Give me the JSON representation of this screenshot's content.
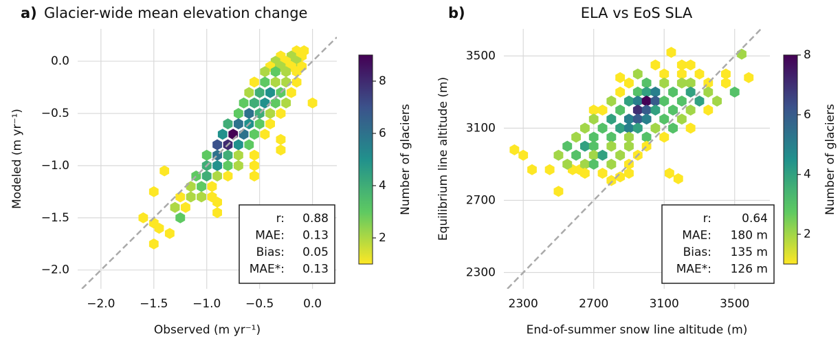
{
  "chart_data": [
    {
      "type": "hexbin",
      "panel_label": "a)",
      "title": "Glacier-wide mean elevation change",
      "xlabel": "Observed (m yr⁻¹)",
      "ylabel": "Modeled (m yr⁻¹)",
      "xlim": [
        -2.22,
        0.23
      ],
      "ylim": [
        -2.18,
        0.31
      ],
      "xticks": [
        {
          "value": -2,
          "label": "−2.0"
        },
        {
          "value": -1.5,
          "label": "−1.5"
        },
        {
          "value": -1,
          "label": "−1.0"
        },
        {
          "value": -0.5,
          "label": "−0.5"
        },
        {
          "value": 0,
          "label": "0.0"
        }
      ],
      "yticks": [
        {
          "value": -2,
          "label": "−2.0"
        },
        {
          "value": -1.5,
          "label": "−1.5"
        },
        {
          "value": -1,
          "label": "−1.0"
        },
        {
          "value": -0.5,
          "label": "−0.5"
        },
        {
          "value": 0,
          "label": "0.0"
        }
      ],
      "grid": true,
      "one_to_one": true,
      "cmap": "viridis_r",
      "colorbar": {
        "label": "Number of glaciers",
        "lim": [
          1,
          9
        ],
        "ticks": [
          2,
          4,
          6,
          8
        ]
      },
      "x": [
        -0.15,
        -0.08,
        -0.3,
        -0.2,
        -0.1,
        -0.35,
        -0.25,
        -0.15,
        -0.4,
        -0.3,
        -0.2,
        -0.1,
        -0.45,
        -0.35,
        -0.25,
        -0.15,
        -0.55,
        -0.45,
        -0.35,
        -0.25,
        -0.15,
        -0.6,
        -0.5,
        -0.4,
        -0.3,
        -0.2,
        -0.65,
        -0.55,
        -0.45,
        -0.35,
        -0.25,
        -0.7,
        -0.6,
        -0.5,
        -0.4,
        -0.3,
        -0.8,
        -0.7,
        -0.6,
        -0.5,
        -0.4,
        -0.85,
        -0.75,
        -0.65,
        -0.55,
        -0.45,
        -0.9,
        -0.8,
        -0.7,
        -0.6,
        -0.3,
        -1.0,
        -0.9,
        -0.8,
        -0.7,
        -0.55,
        -1.0,
        -0.9,
        -0.8,
        -0.7,
        -0.55,
        -1.1,
        -1.0,
        -0.9,
        -0.8,
        -0.55,
        -1.4,
        -1.15,
        -1.05,
        -0.95,
        -1.25,
        -1.15,
        -1.05,
        -0.95,
        -1.5,
        -1.3,
        -1.2,
        -0.9,
        -1.25,
        -0.9,
        -1.6,
        -1.5,
        -1.45,
        -1.35,
        -1.5,
        0.0,
        -0.3
      ],
      "y": [
        0.1,
        0.1,
        0.05,
        0.05,
        0.05,
        0.0,
        0.0,
        0.0,
        -0.05,
        -0.05,
        -0.05,
        -0.05,
        -0.1,
        -0.1,
        -0.1,
        -0.1,
        -0.2,
        -0.2,
        -0.2,
        -0.2,
        -0.2,
        -0.3,
        -0.3,
        -0.3,
        -0.3,
        -0.3,
        -0.4,
        -0.4,
        -0.4,
        -0.4,
        -0.4,
        -0.5,
        -0.5,
        -0.5,
        -0.5,
        -0.5,
        -0.6,
        -0.6,
        -0.6,
        -0.6,
        -0.6,
        -0.7,
        -0.7,
        -0.7,
        -0.7,
        -0.7,
        -0.8,
        -0.8,
        -0.8,
        -0.8,
        -0.75,
        -0.9,
        -0.9,
        -0.9,
        -0.9,
        -0.9,
        -1.0,
        -1.0,
        -1.0,
        -1.0,
        -1.0,
        -1.1,
        -1.1,
        -1.1,
        -1.1,
        -1.1,
        -1.05,
        -1.2,
        -1.2,
        -1.2,
        -1.3,
        -1.3,
        -1.3,
        -1.3,
        -1.25,
        -1.4,
        -1.4,
        -1.35,
        -1.5,
        -1.45,
        -1.5,
        -1.55,
        -1.6,
        -1.65,
        -1.75,
        -0.4,
        -0.85
      ],
      "values": [
        1,
        1,
        1,
        2,
        1,
        2,
        1,
        2,
        1,
        2,
        1,
        1,
        2,
        3,
        2,
        1,
        1,
        3,
        2,
        2,
        1,
        2,
        4,
        5,
        3,
        1,
        3,
        4,
        5,
        3,
        2,
        3,
        6,
        4,
        2,
        1,
        4,
        6,
        5,
        3,
        1,
        5,
        9,
        6,
        3,
        1,
        7,
        8,
        5,
        3,
        1,
        3,
        6,
        4,
        2,
        1,
        4,
        5,
        3,
        2,
        1,
        3,
        4,
        2,
        1,
        1,
        1,
        2,
        3,
        1,
        1,
        2,
        2,
        1,
        1,
        2,
        1,
        1,
        3,
        1,
        1,
        1,
        1,
        1,
        1,
        1,
        1
      ],
      "stats": {
        "labels": [
          "r:",
          "MAE:",
          "Bias:",
          "MAE*:"
        ],
        "values": [
          0.88,
          0.13,
          0.05,
          0.13
        ]
      }
    },
    {
      "type": "hexbin",
      "panel_label": "b)",
      "title": "ELA vs EoS SLA",
      "xlabel": "End-of-summer snow line altitude (m)",
      "ylabel": "Equilibrium line altitude (m)",
      "xlim": [
        2190,
        3700
      ],
      "ylim": [
        2210,
        3650
      ],
      "xticks": [
        2300,
        2700,
        3100,
        3500
      ],
      "yticks": [
        2300,
        2700,
        3100,
        3500
      ],
      "grid": true,
      "one_to_one": true,
      "cmap": "viridis_r",
      "colorbar": {
        "label": "Number of glaciers",
        "lim": [
          1,
          8
        ],
        "ticks": [
          2,
          4,
          6,
          8
        ]
      },
      "x": [
        2250,
        2300,
        2350,
        2450,
        2500,
        3140,
        3540,
        3580,
        3130,
        3180,
        2800,
        2850,
        2620,
        2580,
        2700,
        2850,
        3050,
        3200,
        3250,
        2950,
        3100,
        3200,
        3300,
        3450,
        2900,
        3000,
        3100,
        3200,
        3250,
        3350,
        3450,
        2850,
        2950,
        3000,
        3050,
        3150,
        3250,
        3350,
        3500,
        2800,
        2900,
        2950,
        3000,
        3050,
        3100,
        3200,
        3300,
        3400,
        2750,
        2850,
        2950,
        3000,
        3050,
        3150,
        3250,
        3350,
        2700,
        2800,
        2900,
        2950,
        3000,
        3100,
        3200,
        2650,
        2750,
        2850,
        2900,
        2950,
        3050,
        3150,
        3250,
        2600,
        2700,
        2800,
        2900,
        3000,
        3100,
        2550,
        2650,
        2700,
        2800,
        2900,
        3000,
        2500,
        2600,
        2700,
        2750,
        2850,
        2950,
        2550,
        2650,
        2700,
        2800,
        2900,
        2650,
        2750,
        2900
      ],
      "y": [
        2980,
        2950,
        2870,
        2870,
        2750,
        3520,
        3510,
        3380,
        2850,
        2820,
        2810,
        2830,
        2870,
        2870,
        3200,
        3380,
        3450,
        3450,
        3450,
        3400,
        3400,
        3400,
        3400,
        3400,
        3350,
        3350,
        3350,
        3350,
        3350,
        3350,
        3350,
        3300,
        3300,
        3300,
        3300,
        3300,
        3300,
        3300,
        3300,
        3250,
        3250,
        3250,
        3250,
        3250,
        3250,
        3250,
        3250,
        3250,
        3200,
        3200,
        3200,
        3200,
        3200,
        3200,
        3200,
        3200,
        3150,
        3150,
        3150,
        3150,
        3150,
        3150,
        3150,
        3100,
        3100,
        3100,
        3100,
        3100,
        3100,
        3100,
        3100,
        3050,
        3050,
        3050,
        3050,
        3050,
        3050,
        3000,
        3000,
        3000,
        3000,
        3000,
        3000,
        2950,
        2950,
        2950,
        2950,
        2950,
        2950,
        2900,
        2900,
        2900,
        2900,
        2900,
        2850,
        2850,
        2850
      ],
      "values": [
        1,
        1,
        1,
        1,
        1,
        1,
        2,
        1,
        1,
        1,
        1,
        1,
        1,
        1,
        1,
        1,
        1,
        1,
        1,
        2,
        1,
        1,
        1,
        1,
        1,
        3,
        2,
        2,
        2,
        1,
        1,
        1,
        3,
        4,
        5,
        3,
        4,
        2,
        3,
        2,
        4,
        5,
        8,
        6,
        3,
        3,
        4,
        2,
        1,
        3,
        7,
        6,
        4,
        3,
        2,
        1,
        2,
        4,
        5,
        6,
        5,
        3,
        2,
        2,
        3,
        4,
        5,
        4,
        2,
        3,
        1,
        2,
        3,
        3,
        2,
        3,
        1,
        3,
        4,
        3,
        2,
        2,
        1,
        2,
        3,
        2,
        4,
        2,
        1,
        2,
        2,
        3,
        2,
        1,
        1,
        1,
        1
      ],
      "stats": {
        "labels": [
          "r:",
          "MAE:",
          "Bias:",
          "MAE*:"
        ],
        "values": [
          0.64,
          180,
          135,
          126
        ],
        "value_labels": [
          "0.64",
          "180 m",
          "135 m",
          "126 m"
        ]
      }
    }
  ]
}
